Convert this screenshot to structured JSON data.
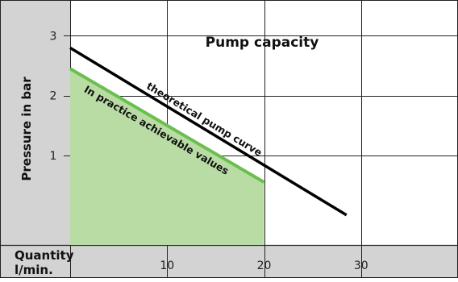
{
  "chart_data": {
    "type": "line",
    "title": "Pump capacity",
    "ylabel": "Pressure in bar",
    "xlabel": "Quantity l/min.",
    "xlabel_lines": [
      "Quantity",
      "l/min."
    ],
    "xlim": [
      0,
      40
    ],
    "ylim": [
      -0.5,
      3.6
    ],
    "x_ticks": [
      10,
      20,
      30
    ],
    "y_ticks": [
      1,
      2,
      3
    ],
    "grid": true,
    "series": [
      {
        "name": "theoretical pump curve",
        "color": "#000000",
        "x": [
          0,
          28.5
        ],
        "y": [
          2.8,
          0
        ]
      },
      {
        "name": "In practice achievable values",
        "color": "#6bbf4e",
        "fill": "#b9dca5",
        "x": [
          0,
          20
        ],
        "y": [
          2.45,
          0.55
        ]
      }
    ],
    "colors": {
      "axis_band": "#d3d3d3",
      "grid": "#222222"
    }
  }
}
